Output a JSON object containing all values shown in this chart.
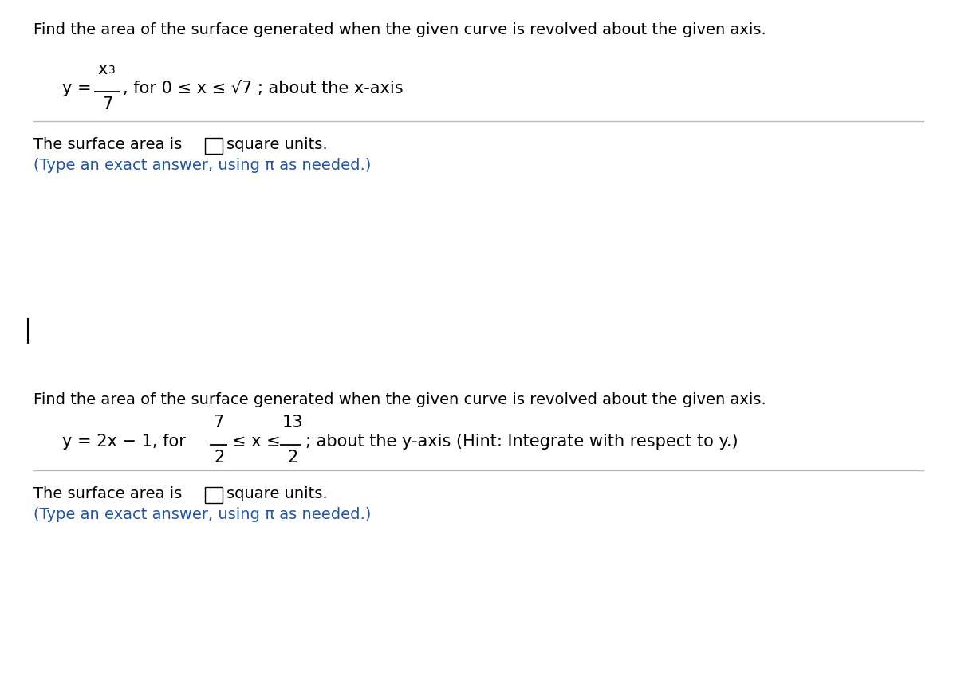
{
  "bg_color": "#ffffff",
  "text_color": "#000000",
  "blue_color": "#2255aa",
  "figsize": [
    12.0,
    8.48
  ],
  "dpi": 100,
  "q1_header": "Find the area of the surface generated when the given curve is revolved about the given axis.",
  "q1_formula_rest": ", for 0 ≤ x ≤ √7 ; about the x-axis",
  "q1_answer_prefix": "The surface area is",
  "q1_answer_suffix": "square units.",
  "q1_hint": "(Type an exact answer, using π as needed.)",
  "q2_header": "Find the area of the surface generated when the given curve is revolved about the given axis.",
  "q2_formula_prefix": "y = 2x − 1, for ",
  "q2_formula_frac1_num": "7",
  "q2_formula_frac1_den": "2",
  "q2_formula_mid": "≤ x ≤",
  "q2_formula_frac2_num": "13",
  "q2_formula_frac2_den": "2",
  "q2_formula_suffix": "; about the y-axis (Hint: Integrate with respect to y.)",
  "q2_answer_prefix": "The surface area is",
  "q2_answer_suffix": "square units.",
  "q2_hint": "(Type an exact answer, using π as needed.)",
  "sep_color": "#bbbbbb",
  "header_fontsize": 14,
  "formula_fontsize": 15,
  "small_fontsize": 10,
  "answer_fontsize": 14
}
